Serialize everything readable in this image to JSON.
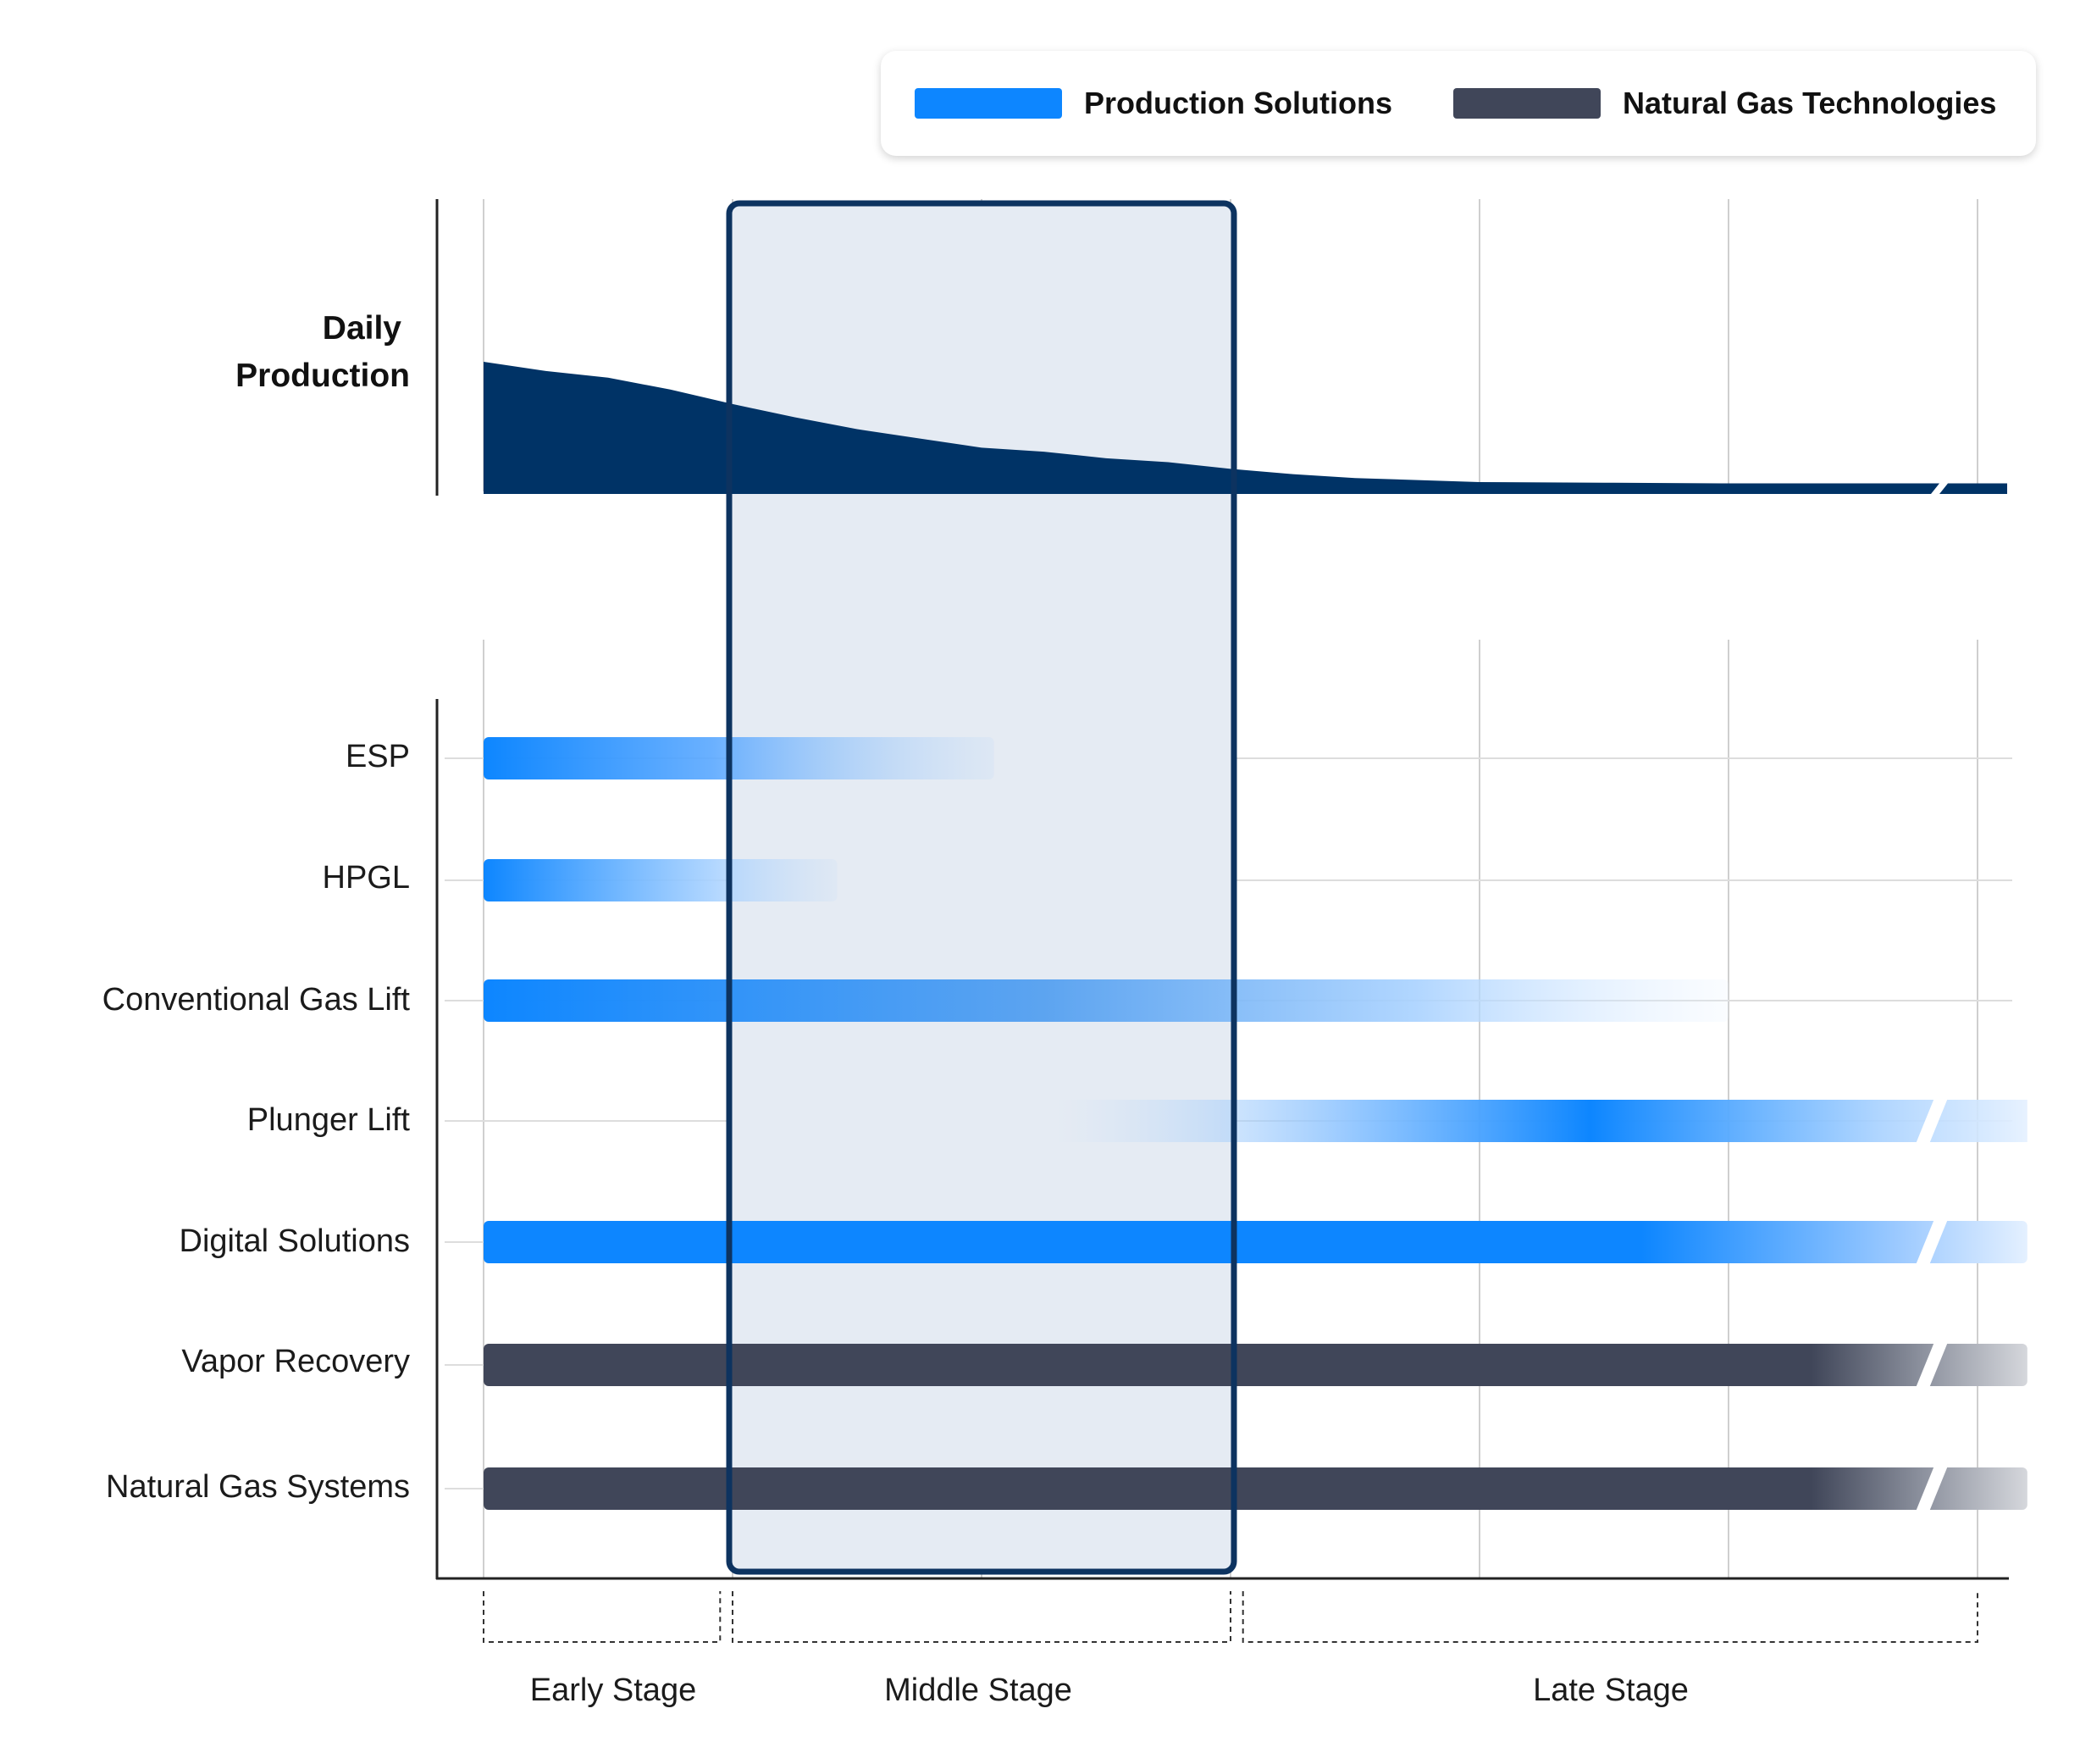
{
  "legend": [
    {
      "name": "Production Solutions",
      "color": "#0d86ff"
    },
    {
      "name": "Natural Gas Technologies",
      "color": "#404659"
    }
  ],
  "daily_production": {
    "label_line1": "Daily",
    "label_line2": "Production",
    "color": "#003366"
  },
  "chart_data": {
    "type": "timeline",
    "x_range": [
      0,
      6
    ],
    "highlight_range": [
      1,
      3
    ],
    "production_curve": {
      "x": [
        0,
        0.25,
        0.5,
        0.75,
        1,
        1.25,
        1.5,
        1.75,
        2,
        2.25,
        2.5,
        2.75,
        3,
        3.25,
        3.5,
        4,
        4.5,
        5,
        5.5,
        6
      ],
      "y": [
        1.0,
        0.93,
        0.88,
        0.79,
        0.68,
        0.58,
        0.49,
        0.42,
        0.35,
        0.32,
        0.27,
        0.24,
        0.19,
        0.15,
        0.12,
        0.09,
        0.085,
        0.08,
        0.08,
        0.08
      ]
    },
    "rows": [
      {
        "label": "ESP",
        "category": "Production Solutions",
        "start": 0,
        "end": 2.05,
        "fade": "out",
        "continues": false
      },
      {
        "label": "HPGL",
        "category": "Production Solutions",
        "start": 0,
        "end": 1.42,
        "fade": "out",
        "continues": false
      },
      {
        "label": "Conventional Gas Lift",
        "category": "Production Solutions",
        "start": 0,
        "end": 5.0,
        "fade": "out",
        "continues": false
      },
      {
        "label": "Plunger Lift",
        "category": "Production Solutions",
        "start": 2.3,
        "end": 6.2,
        "fade": "in-peak-out",
        "continues": true
      },
      {
        "label": "Digital Solutions",
        "category": "Production Solutions",
        "start": 0,
        "end": 6.2,
        "fade": "tail",
        "continues": true
      },
      {
        "label": "Vapor Recovery",
        "category": "Natural Gas Technologies",
        "start": 0,
        "end": 6.2,
        "fade": "tail",
        "continues": true
      },
      {
        "label": "Natural Gas Systems",
        "category": "Natural Gas Technologies",
        "start": 0,
        "end": 6.2,
        "fade": "tail",
        "continues": true
      }
    ],
    "stages": [
      {
        "name": "Early Stage",
        "start": 0,
        "end": 0.95
      },
      {
        "name": "Middle Stage",
        "start": 1.0,
        "end": 3.0
      },
      {
        "name": "Late Stage",
        "start": 3.05,
        "end": 6
      }
    ]
  }
}
